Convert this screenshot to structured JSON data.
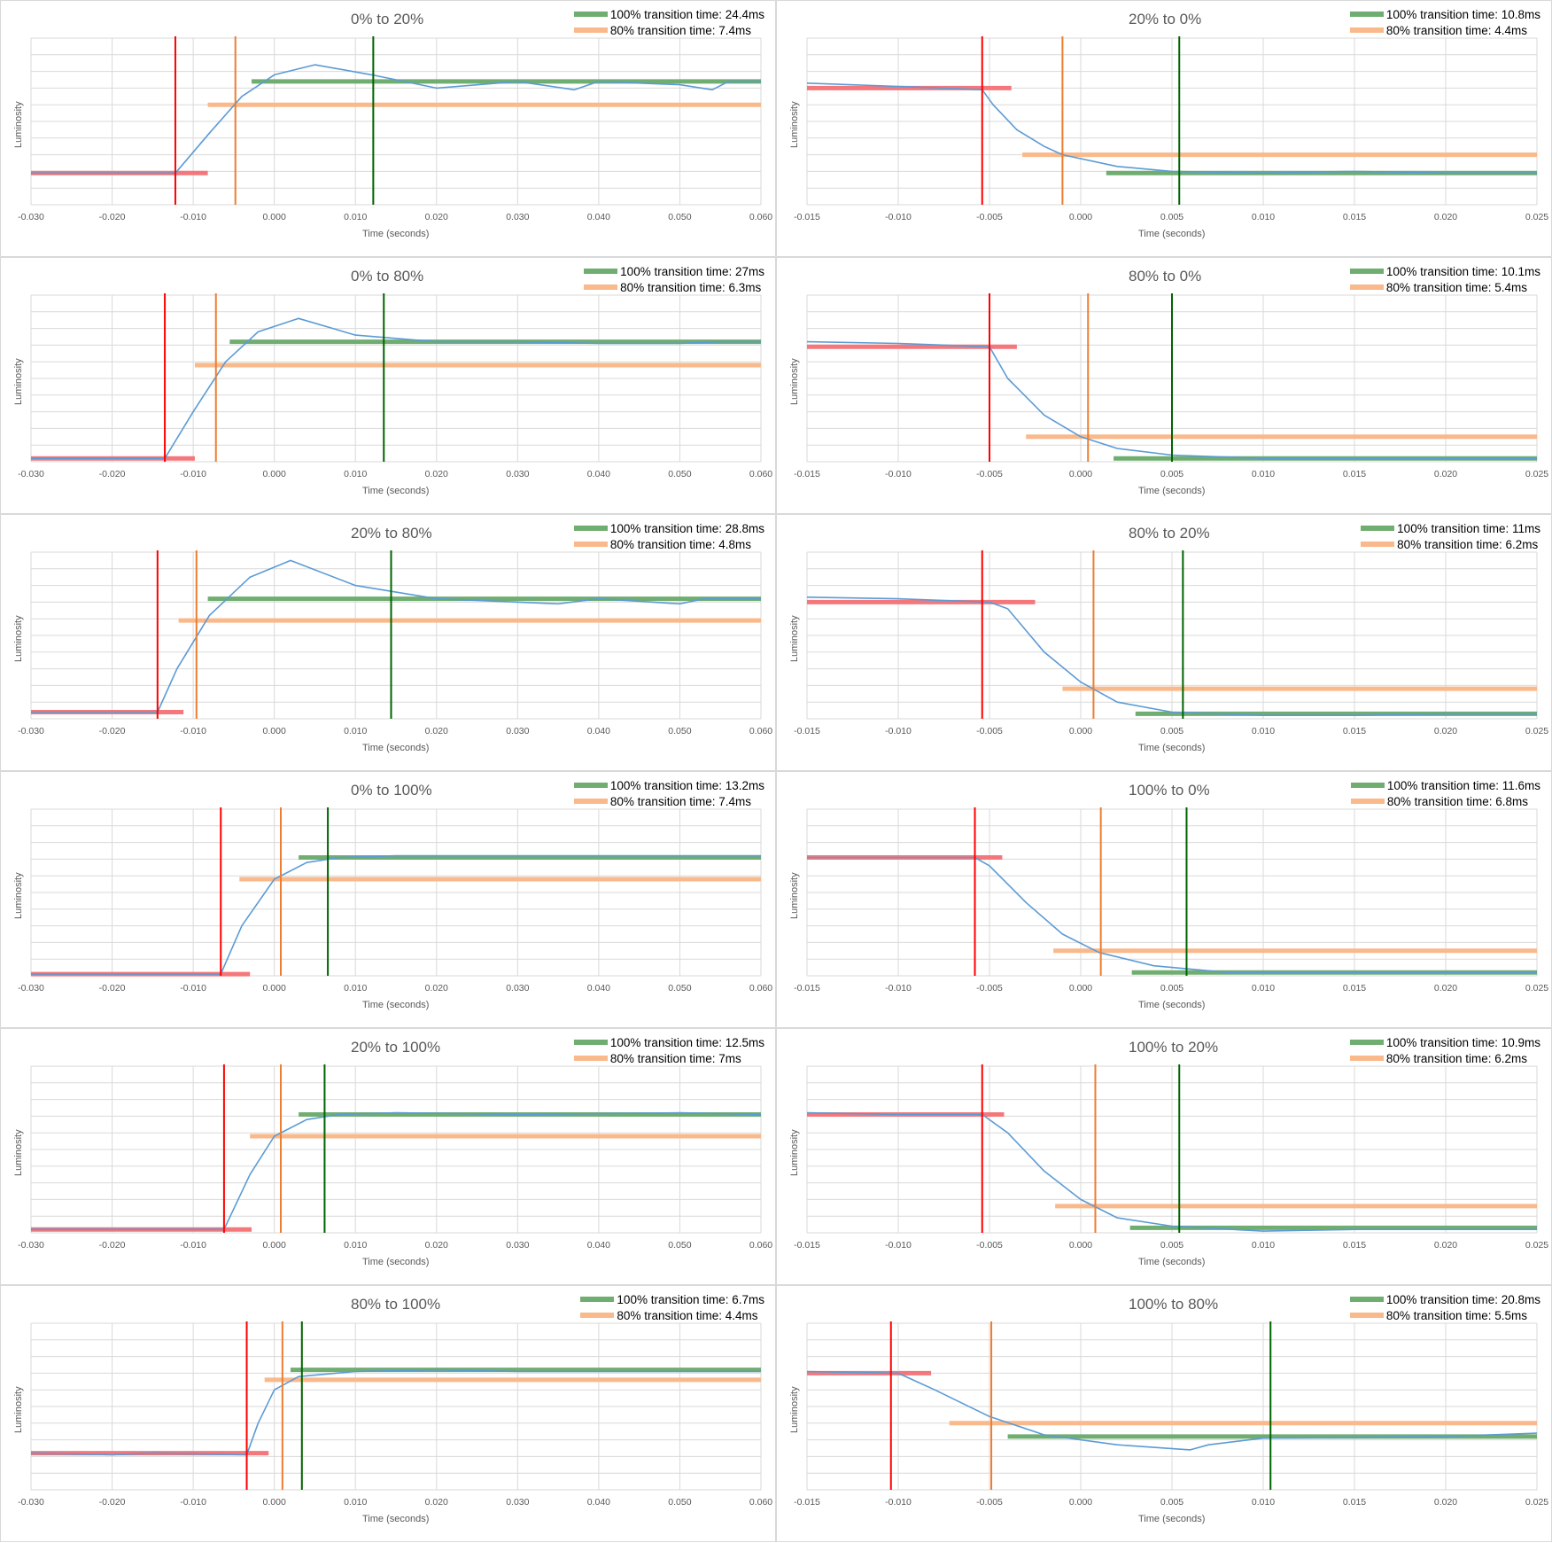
{
  "colors": {
    "luminosity": "#5b9bd5",
    "start_marker": "#ff0000",
    "start_level": "#f4777b",
    "t80_marker": "#ed7d31",
    "t80_level": "#f9b98b",
    "t100_marker": "#006400",
    "t100_level": "#70ad70",
    "grid": "#d9d9d9"
  },
  "chart_data": [
    {
      "type": "line",
      "title": "0% to 20%",
      "xlabel": "Time (seconds)",
      "ylabel": "Luminosity",
      "xlim": [
        -0.03,
        0.06
      ],
      "xticks": [
        "-0.030",
        "-0.020",
        "-0.010",
        "0.000",
        "0.010",
        "0.020",
        "0.030",
        "0.040",
        "0.050",
        "0.060"
      ],
      "legend": [
        "100% transition time: 24.4ms",
        "80% transition time: 7.4ms"
      ],
      "markers": {
        "start": -0.0122,
        "t80": -0.0048,
        "t100": 0.0122
      },
      "levels": {
        "start": {
          "y": 0.19,
          "x1": -0.03,
          "x2": -0.0082
        },
        "p80": {
          "y": 0.6,
          "x1": -0.0082,
          "x2": 0.06
        },
        "p100": {
          "y": 0.74,
          "x1": -0.0028,
          "x2": 0.06
        }
      },
      "series": [
        {
          "x": [
            -0.03,
            -0.02,
            -0.0122,
            -0.008,
            -0.004,
            0,
            0.005,
            0.012,
            0.02,
            0.03,
            0.037,
            0.04,
            0.05,
            0.054,
            0.056,
            0.06
          ],
          "y": [
            0.19,
            0.19,
            0.19,
            0.43,
            0.65,
            0.78,
            0.84,
            0.78,
            0.7,
            0.74,
            0.69,
            0.74,
            0.72,
            0.69,
            0.74,
            0.74
          ]
        }
      ]
    },
    {
      "type": "line",
      "title": "20% to 0%",
      "xlabel": "Time (seconds)",
      "ylabel": "Luminosity",
      "xlim": [
        -0.015,
        0.025
      ],
      "xticks": [
        "-0.015",
        "-0.010",
        "-0.005",
        "0.000",
        "0.005",
        "0.010",
        "0.015",
        "0.020",
        "0.025"
      ],
      "legend": [
        "100% transition time: 10.8ms",
        "80% transition time: 4.4ms"
      ],
      "markers": {
        "start": -0.0054,
        "t80": -0.001,
        "t100": 0.0054
      },
      "levels": {
        "start": {
          "y": 0.7,
          "x1": -0.015,
          "x2": -0.0038
        },
        "p80": {
          "y": 0.3,
          "x1": -0.0032,
          "x2": 0.025
        },
        "p100": {
          "y": 0.19,
          "x1": 0.0014,
          "x2": 0.025
        }
      },
      "series": [
        {
          "x": [
            -0.015,
            -0.01,
            -0.0054,
            -0.0048,
            -0.0035,
            -0.002,
            -0.001,
            0.002,
            0.005,
            0.01,
            0.015,
            0.02,
            0.025
          ],
          "y": [
            0.73,
            0.71,
            0.69,
            0.6,
            0.45,
            0.35,
            0.3,
            0.23,
            0.2,
            0.19,
            0.2,
            0.19,
            0.19
          ]
        }
      ]
    },
    {
      "type": "line",
      "title": "0% to 80%",
      "xlabel": "Time (seconds)",
      "ylabel": "Luminosity",
      "xlim": [
        -0.03,
        0.06
      ],
      "xticks": [
        "-0.030",
        "-0.020",
        "-0.010",
        "0.000",
        "0.010",
        "0.020",
        "0.030",
        "0.040",
        "0.050",
        "0.060"
      ],
      "legend": [
        "100% transition time: 27ms",
        "80% transition time: 6.3ms"
      ],
      "markers": {
        "start": -0.0135,
        "t80": -0.0072,
        "t100": 0.0135
      },
      "levels": {
        "start": {
          "y": 0.02,
          "x1": -0.03,
          "x2": -0.0098
        },
        "p80": {
          "y": 0.58,
          "x1": -0.0098,
          "x2": 0.06
        },
        "p100": {
          "y": 0.72,
          "x1": -0.0055,
          "x2": 0.06
        }
      },
      "series": [
        {
          "x": [
            -0.03,
            -0.02,
            -0.0135,
            -0.01,
            -0.006,
            -0.002,
            0.003,
            0.01,
            0.02,
            0.03,
            0.04,
            0.05,
            0.055,
            0.06
          ],
          "y": [
            0.02,
            0.02,
            0.02,
            0.3,
            0.6,
            0.78,
            0.86,
            0.76,
            0.72,
            0.72,
            0.71,
            0.71,
            0.72,
            0.72
          ]
        }
      ]
    },
    {
      "type": "line",
      "title": "80% to 0%",
      "xlabel": "Time (seconds)",
      "ylabel": "Luminosity",
      "xlim": [
        -0.015,
        0.025
      ],
      "xticks": [
        "-0.015",
        "-0.010",
        "-0.005",
        "0.000",
        "0.005",
        "0.010",
        "0.015",
        "0.020",
        "0.025"
      ],
      "legend": [
        "100% transition time: 10.1ms",
        "80% transition time: 5.4ms"
      ],
      "markers": {
        "start": -0.005,
        "t80": 0.0004,
        "t100": 0.005
      },
      "levels": {
        "start": {
          "y": 0.69,
          "x1": -0.015,
          "x2": -0.0035
        },
        "p80": {
          "y": 0.15,
          "x1": -0.003,
          "x2": 0.025
        },
        "p100": {
          "y": 0.02,
          "x1": 0.0018,
          "x2": 0.025
        }
      },
      "series": [
        {
          "x": [
            -0.015,
            -0.01,
            -0.005,
            -0.004,
            -0.002,
            0,
            0.002,
            0.005,
            0.01,
            0.015,
            0.02,
            0.025
          ],
          "y": [
            0.72,
            0.71,
            0.69,
            0.5,
            0.28,
            0.15,
            0.08,
            0.04,
            0.02,
            0.02,
            0.02,
            0.02
          ]
        }
      ]
    },
    {
      "type": "line",
      "title": "20% to 80%",
      "xlabel": "Time (seconds)",
      "ylabel": "Luminosity",
      "xlim": [
        -0.03,
        0.06
      ],
      "xticks": [
        "-0.030",
        "-0.020",
        "-0.010",
        "0.000",
        "0.010",
        "0.020",
        "0.030",
        "0.040",
        "0.050",
        "0.060"
      ],
      "legend": [
        "100% transition time: 28.8ms",
        "80% transition time: 4.8ms"
      ],
      "markers": {
        "start": -0.0144,
        "t80": -0.0096,
        "t100": 0.0144
      },
      "levels": {
        "start": {
          "y": 0.04,
          "x1": -0.03,
          "x2": -0.0112
        },
        "p80": {
          "y": 0.59,
          "x1": -0.0118,
          "x2": 0.06
        },
        "p100": {
          "y": 0.72,
          "x1": -0.0082,
          "x2": 0.06
        }
      },
      "series": [
        {
          "x": [
            -0.03,
            -0.02,
            -0.0144,
            -0.012,
            -0.008,
            -0.003,
            0.002,
            0.01,
            0.02,
            0.035,
            0.04,
            0.05,
            0.053,
            0.06
          ],
          "y": [
            0.04,
            0.04,
            0.04,
            0.3,
            0.62,
            0.85,
            0.95,
            0.8,
            0.72,
            0.69,
            0.72,
            0.69,
            0.72,
            0.72
          ]
        }
      ]
    },
    {
      "type": "line",
      "title": "80% to 20%",
      "xlabel": "Time (seconds)",
      "ylabel": "Luminosity",
      "xlim": [
        -0.015,
        0.025
      ],
      "xticks": [
        "-0.015",
        "-0.010",
        "-0.005",
        "0.000",
        "0.005",
        "0.010",
        "0.015",
        "0.020",
        "0.025"
      ],
      "legend": [
        "100% transition time: 11ms",
        "80% transition time: 6.2ms"
      ],
      "markers": {
        "start": -0.0054,
        "t80": 0.0007,
        "t100": 0.0056
      },
      "levels": {
        "start": {
          "y": 0.7,
          "x1": -0.015,
          "x2": -0.0025
        },
        "p80": {
          "y": 0.18,
          "x1": -0.001,
          "x2": 0.025
        },
        "p100": {
          "y": 0.03,
          "x1": 0.003,
          "x2": 0.025
        }
      },
      "series": [
        {
          "x": [
            -0.015,
            -0.01,
            -0.005,
            -0.004,
            -0.002,
            0,
            0.002,
            0.005,
            0.01,
            0.015,
            0.02,
            0.025
          ],
          "y": [
            0.73,
            0.72,
            0.7,
            0.66,
            0.4,
            0.22,
            0.1,
            0.04,
            0.02,
            0.02,
            0.03,
            0.03
          ]
        }
      ]
    },
    {
      "type": "line",
      "title": "0% to 100%",
      "xlabel": "Time (seconds)",
      "ylabel": "Luminosity",
      "xlim": [
        -0.03,
        0.06
      ],
      "xticks": [
        "-0.030",
        "-0.020",
        "-0.010",
        "0.000",
        "0.010",
        "0.020",
        "0.030",
        "0.040",
        "0.050",
        "0.060"
      ],
      "legend": [
        "100% transition time: 13.2ms",
        "80% transition time: 7.4ms"
      ],
      "markers": {
        "start": -0.0066,
        "t80": 0.0008,
        "t100": 0.0066
      },
      "levels": {
        "start": {
          "y": 0.01,
          "x1": -0.03,
          "x2": -0.003
        },
        "p80": {
          "y": 0.58,
          "x1": -0.0043,
          "x2": 0.06
        },
        "p100": {
          "y": 0.71,
          "x1": 0.003,
          "x2": 0.06
        }
      },
      "series": [
        {
          "x": [
            -0.03,
            -0.02,
            -0.0066,
            -0.004,
            0,
            0.004,
            0.008,
            0.015,
            0.03,
            0.05,
            0.06
          ],
          "y": [
            0.01,
            0.01,
            0.01,
            0.3,
            0.58,
            0.68,
            0.71,
            0.72,
            0.72,
            0.72,
            0.72
          ]
        }
      ]
    },
    {
      "type": "line",
      "title": "100% to 0%",
      "xlabel": "Time (seconds)",
      "ylabel": "Luminosity",
      "xlim": [
        -0.015,
        0.025
      ],
      "xticks": [
        "-0.015",
        "-0.010",
        "-0.005",
        "0.000",
        "0.005",
        "0.010",
        "0.015",
        "0.020",
        "0.025"
      ],
      "legend": [
        "100% transition time: 11.6ms",
        "80% transition time: 6.8ms"
      ],
      "markers": {
        "start": -0.0058,
        "t80": 0.0011,
        "t100": 0.0058
      },
      "levels": {
        "start": {
          "y": 0.71,
          "x1": -0.015,
          "x2": -0.0043
        },
        "p80": {
          "y": 0.15,
          "x1": -0.0015,
          "x2": 0.025
        },
        "p100": {
          "y": 0.02,
          "x1": 0.0028,
          "x2": 0.025
        }
      },
      "series": [
        {
          "x": [
            -0.015,
            -0.01,
            -0.0058,
            -0.005,
            -0.003,
            -0.001,
            0.001,
            0.004,
            0.008,
            0.015,
            0.025
          ],
          "y": [
            0.71,
            0.71,
            0.71,
            0.66,
            0.44,
            0.25,
            0.14,
            0.06,
            0.02,
            0.02,
            0.02
          ]
        }
      ]
    },
    {
      "type": "line",
      "title": "20% to 100%",
      "xlabel": "Time (seconds)",
      "ylabel": "Luminosity",
      "xlim": [
        -0.03,
        0.06
      ],
      "xticks": [
        "-0.030",
        "-0.020",
        "-0.010",
        "0.000",
        "0.010",
        "0.020",
        "0.030",
        "0.040",
        "0.050",
        "0.060"
      ],
      "legend": [
        "100% transition time: 12.5ms",
        "80% transition time: 7ms"
      ],
      "markers": {
        "start": -0.0062,
        "t80": 0.0008,
        "t100": 0.0062
      },
      "levels": {
        "start": {
          "y": 0.02,
          "x1": -0.03,
          "x2": -0.0028
        },
        "p80": {
          "y": 0.58,
          "x1": -0.003,
          "x2": 0.06
        },
        "p100": {
          "y": 0.71,
          "x1": 0.003,
          "x2": 0.06
        }
      },
      "series": [
        {
          "x": [
            -0.03,
            -0.02,
            -0.0062,
            -0.003,
            0,
            0.004,
            0.008,
            0.015,
            0.03,
            0.05,
            0.06
          ],
          "y": [
            0.02,
            0.02,
            0.02,
            0.35,
            0.58,
            0.68,
            0.71,
            0.72,
            0.71,
            0.72,
            0.71
          ]
        }
      ]
    },
    {
      "type": "line",
      "title": "100% to 20%",
      "xlabel": "Time (seconds)",
      "ylabel": "Luminosity",
      "xlim": [
        -0.015,
        0.025
      ],
      "xticks": [
        "-0.015",
        "-0.010",
        "-0.005",
        "0.000",
        "0.005",
        "0.010",
        "0.015",
        "0.020",
        "0.025"
      ],
      "legend": [
        "100% transition time: 10.9ms",
        "80% transition time: 6.2ms"
      ],
      "markers": {
        "start": -0.0054,
        "t80": 0.0008,
        "t100": 0.0054
      },
      "levels": {
        "start": {
          "y": 0.71,
          "x1": -0.015,
          "x2": -0.0042
        },
        "p80": {
          "y": 0.16,
          "x1": -0.0014,
          "x2": 0.025
        },
        "p100": {
          "y": 0.03,
          "x1": 0.0027,
          "x2": 0.025
        }
      },
      "series": [
        {
          "x": [
            -0.015,
            -0.01,
            -0.0054,
            -0.004,
            -0.002,
            0,
            0.002,
            0.005,
            0.01,
            0.015,
            0.025
          ],
          "y": [
            0.72,
            0.71,
            0.71,
            0.6,
            0.37,
            0.2,
            0.09,
            0.04,
            0.01,
            0.02,
            0.02
          ]
        }
      ]
    },
    {
      "type": "line",
      "title": "80% to 100%",
      "xlabel": "Time (seconds)",
      "ylabel": "Luminosity",
      "xlim": [
        -0.03,
        0.06
      ],
      "xticks": [
        "-0.030",
        "-0.020",
        "-0.010",
        "0.000",
        "0.010",
        "0.020",
        "0.030",
        "0.040",
        "0.050",
        "0.060"
      ],
      "legend": [
        "100% transition time: 6.7ms",
        "80% transition time: 4.4ms"
      ],
      "markers": {
        "start": -0.0034,
        "t80": 0.001,
        "t100": 0.0034
      },
      "levels": {
        "start": {
          "y": 0.22,
          "x1": -0.03,
          "x2": -0.0007
        },
        "p80": {
          "y": 0.66,
          "x1": -0.0012,
          "x2": 0.06
        },
        "p100": {
          "y": 0.72,
          "x1": 0.002,
          "x2": 0.06
        }
      },
      "series": [
        {
          "x": [
            -0.03,
            -0.02,
            -0.015,
            -0.0034,
            -0.002,
            0,
            0.003,
            0.01,
            0.02,
            0.03,
            0.04,
            0.05,
            0.06
          ],
          "y": [
            0.22,
            0.21,
            0.22,
            0.21,
            0.4,
            0.6,
            0.68,
            0.71,
            0.72,
            0.71,
            0.71,
            0.71,
            0.71
          ]
        }
      ]
    },
    {
      "type": "line",
      "title": "100% to 80%",
      "xlabel": "Time (seconds)",
      "ylabel": "Luminosity",
      "xlim": [
        -0.015,
        0.025
      ],
      "xticks": [
        "-0.015",
        "-0.010",
        "-0.005",
        "0.000",
        "0.005",
        "0.010",
        "0.015",
        "0.020",
        "0.025"
      ],
      "legend": [
        "100% transition time: 20.8ms",
        "80% transition time: 5.5ms"
      ],
      "markers": {
        "start": -0.0104,
        "t80": -0.0049,
        "t100": 0.0104
      },
      "levels": {
        "start": {
          "y": 0.7,
          "x1": -0.015,
          "x2": -0.0082
        },
        "p80": {
          "y": 0.4,
          "x1": -0.0072,
          "x2": 0.025
        },
        "p100": {
          "y": 0.32,
          "x1": -0.004,
          "x2": 0.025
        }
      },
      "series": [
        {
          "x": [
            -0.015,
            -0.01,
            -0.008,
            -0.005,
            -0.002,
            0.002,
            0.006,
            0.007,
            0.01,
            0.02,
            0.025
          ],
          "y": [
            0.71,
            0.7,
            0.6,
            0.44,
            0.33,
            0.27,
            0.24,
            0.27,
            0.31,
            0.32,
            0.34
          ]
        }
      ]
    }
  ]
}
